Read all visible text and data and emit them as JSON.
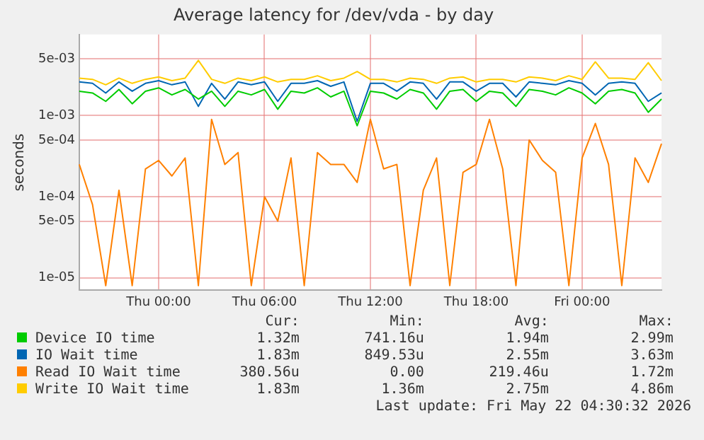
{
  "chart_data": {
    "type": "line",
    "title": "Average latency for /dev/vda - by day",
    "ylabel": "seconds",
    "log": "y",
    "grid": true,
    "legend": "bottom",
    "categories": [
      null,
      null,
      null,
      null,
      null,
      null,
      "Thu 00:00",
      null,
      null,
      null,
      null,
      null,
      null,
      null,
      "Thu 06:00",
      null,
      null,
      null,
      null,
      null,
      null,
      null,
      "Thu 12:00",
      null,
      null,
      null,
      null,
      null,
      null,
      null,
      "Thu 18:00",
      null,
      null,
      null,
      null,
      null,
      null,
      null,
      "Fri 00:00",
      null,
      null,
      null,
      null,
      null,
      null
    ],
    "ylim": [
      7e-06,
      0.01
    ],
    "yticks": [
      {
        "value": 1e-05,
        "label": "1e-05"
      },
      {
        "value": 5e-05,
        "label": "5e-05"
      },
      {
        "value": 0.0001,
        "label": "1e-04"
      },
      {
        "value": 0.0005,
        "label": "5e-04"
      },
      {
        "value": 0.001,
        "label": "1e-03"
      },
      {
        "value": 0.005,
        "label": "5e-03"
      }
    ],
    "series": [
      {
        "name": "Device IO time",
        "color": "#00cc00",
        "values": [
          0.002,
          0.0019,
          0.0015,
          0.0021,
          0.0014,
          0.002,
          0.0022,
          0.0018,
          0.0021,
          0.0016,
          0.002,
          0.0013,
          0.002,
          0.0018,
          0.0021,
          0.0012,
          0.002,
          0.0019,
          0.0022,
          0.0017,
          0.002,
          0.00075,
          0.002,
          0.0019,
          0.0016,
          0.0021,
          0.0019,
          0.0012,
          0.002,
          0.0021,
          0.0015,
          0.002,
          0.0019,
          0.0013,
          0.0021,
          0.002,
          0.0018,
          0.0022,
          0.0019,
          0.0014,
          0.002,
          0.0021,
          0.0019,
          0.0011,
          0.0016
        ]
      },
      {
        "name": "IO Wait time",
        "color": "#0066b3",
        "values": [
          0.0026,
          0.0025,
          0.0019,
          0.0026,
          0.002,
          0.0025,
          0.0027,
          0.0024,
          0.0026,
          0.0013,
          0.0025,
          0.0016,
          0.0026,
          0.0024,
          0.0026,
          0.0015,
          0.0025,
          0.0025,
          0.0027,
          0.0023,
          0.0026,
          0.00085,
          0.0025,
          0.0025,
          0.002,
          0.0026,
          0.0025,
          0.0016,
          0.0026,
          0.0026,
          0.002,
          0.0025,
          0.0025,
          0.0017,
          0.0026,
          0.0025,
          0.0024,
          0.0027,
          0.0025,
          0.0018,
          0.0025,
          0.0026,
          0.0025,
          0.0015,
          0.0019
        ]
      },
      {
        "name": "Read IO Wait time",
        "color": "#ff8000",
        "values": [
          0.00025,
          8e-05,
          8e-06,
          0.00012,
          8e-06,
          0.00022,
          0.00028,
          0.00018,
          0.0003,
          8e-06,
          0.0009,
          0.00025,
          0.00035,
          8e-06,
          0.0001,
          5e-05,
          0.0003,
          8e-06,
          0.00035,
          0.00025,
          0.00025,
          0.00015,
          0.0009,
          0.00022,
          0.00025,
          8e-06,
          0.00012,
          0.0003,
          8e-06,
          0.0002,
          0.00025,
          0.0009,
          0.00022,
          8e-06,
          0.0005,
          0.00028,
          0.0002,
          8e-06,
          0.0003,
          0.0008,
          0.00025,
          8e-06,
          0.0003,
          0.00015,
          0.00045
        ]
      },
      {
        "name": "Write IO Wait time",
        "color": "#ffcc00",
        "values": [
          0.0029,
          0.0028,
          0.0024,
          0.0029,
          0.0025,
          0.0028,
          0.003,
          0.0027,
          0.0029,
          0.0048,
          0.0028,
          0.0025,
          0.0029,
          0.0027,
          0.003,
          0.0026,
          0.0028,
          0.0028,
          0.0031,
          0.0027,
          0.0029,
          0.0035,
          0.0028,
          0.0028,
          0.0026,
          0.0029,
          0.0028,
          0.0025,
          0.0029,
          0.003,
          0.0026,
          0.0028,
          0.0028,
          0.0026,
          0.003,
          0.0029,
          0.0027,
          0.0031,
          0.0028,
          0.0046,
          0.0029,
          0.0029,
          0.0028,
          0.0045,
          0.0027
        ]
      }
    ],
    "annotations": [
      "Cur:",
      "Min:",
      "Avg:",
      "Max:",
      "1.32m",
      "741.16u",
      "1.94m",
      "2.99m",
      "1.83m",
      "849.53u",
      "2.55m",
      "3.63m",
      "380.56u",
      "0.00",
      "219.46u",
      "1.72m",
      "1.83m",
      "1.36m",
      "2.75m",
      "4.86m",
      "Last update: Fri May 22 04:30:32 2026"
    ]
  }
}
